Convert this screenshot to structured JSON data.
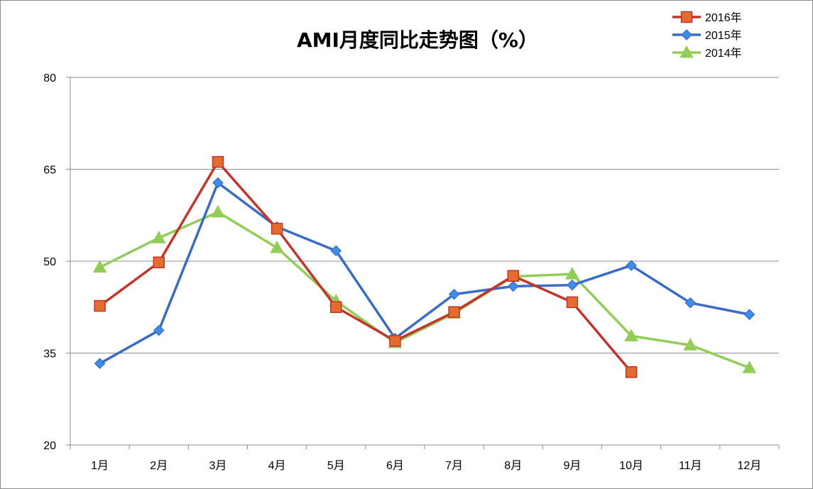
{
  "chart_data": {
    "type": "line",
    "title": "AMI月度同比走势图（%）",
    "categories": [
      "1月",
      "2月",
      "3月",
      "4月",
      "5月",
      "6月",
      "7月",
      "8月",
      "9月",
      "10月",
      "11月",
      "12月"
    ],
    "ylim": [
      20,
      80
    ],
    "yticks": [
      20,
      35,
      50,
      65,
      80
    ],
    "grid": true,
    "legend_position": "top-right",
    "series": [
      {
        "name": "2016年",
        "color": "#c0362c",
        "marker_fill": "#e46c2e",
        "marker": "square",
        "values": [
          42.7,
          49.8,
          66.2,
          55.3,
          42.5,
          37.0,
          41.7,
          47.6,
          43.3,
          31.9,
          null,
          null
        ]
      },
      {
        "name": "2015年",
        "color": "#3a6cc6",
        "marker_fill": "#3e8ee8",
        "marker": "diamond",
        "values": [
          33.3,
          38.7,
          62.8,
          55.6,
          51.7,
          37.4,
          44.6,
          45.9,
          46.1,
          49.3,
          43.2,
          41.3
        ]
      },
      {
        "name": "2014年",
        "color": "#92cd5a",
        "marker_fill": "#92cd5a",
        "marker": "triangle",
        "values": [
          49.0,
          53.8,
          58.0,
          52.2,
          43.5,
          36.7,
          41.5,
          47.5,
          47.9,
          37.8,
          36.3,
          32.6
        ]
      }
    ]
  }
}
